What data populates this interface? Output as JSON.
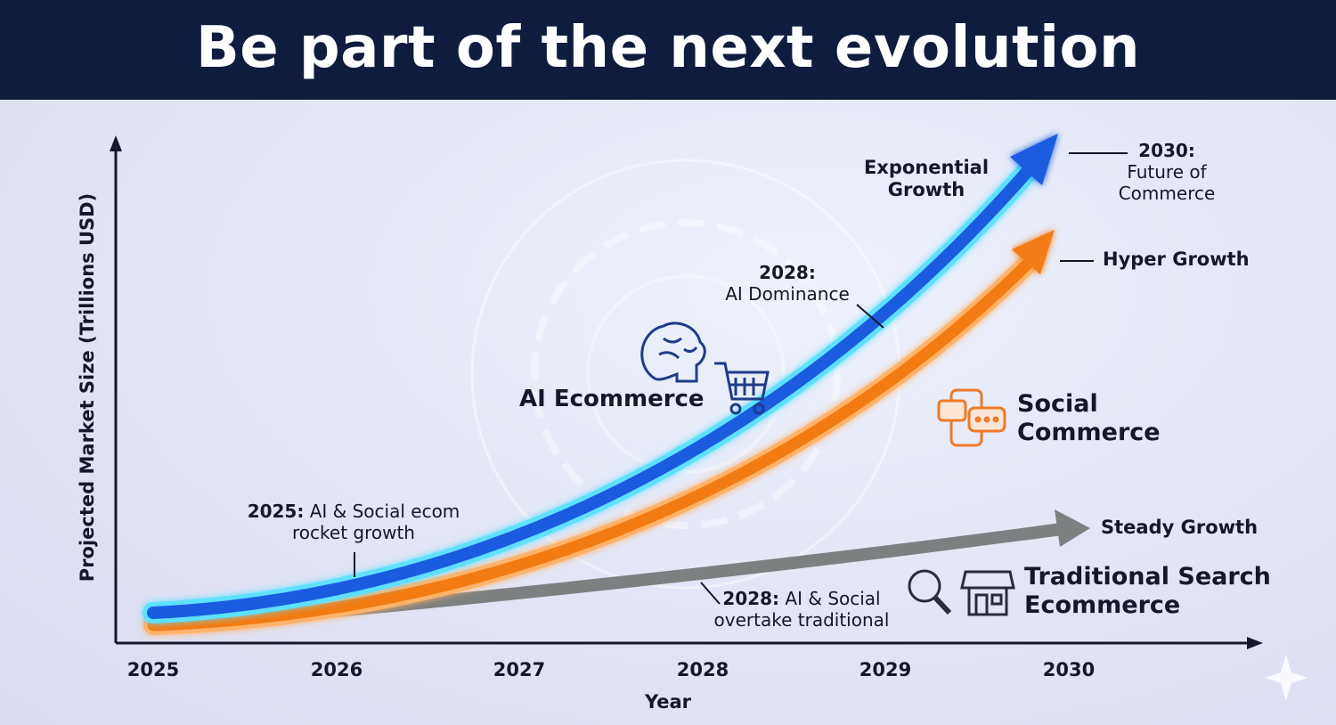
{
  "header": {
    "title": "Be part of the next evolution"
  },
  "axes": {
    "y_label": "Projected Market Size (Trillions USD)",
    "x_label": "Year",
    "x_ticks": [
      "2025",
      "2026",
      "2027",
      "2028",
      "2029",
      "2030"
    ]
  },
  "curves": [
    {
      "name": "AI Ecommerce",
      "end_label": "Exponential Growth"
    },
    {
      "name": "Social Commerce",
      "end_label": "Hyper Growth"
    },
    {
      "name": "Traditional Search Ecommerce",
      "end_label": "Steady Growth"
    }
  ],
  "annotations": [
    {
      "year": "2030:",
      "text": "Future of Commerce"
    },
    {
      "year": "2028:",
      "text": "AI Dominance"
    },
    {
      "year": "2025:",
      "text": "AI & Social ecom rocket growth"
    },
    {
      "year": "2028:",
      "text": "AI & Social overtake traditional"
    }
  ]
}
